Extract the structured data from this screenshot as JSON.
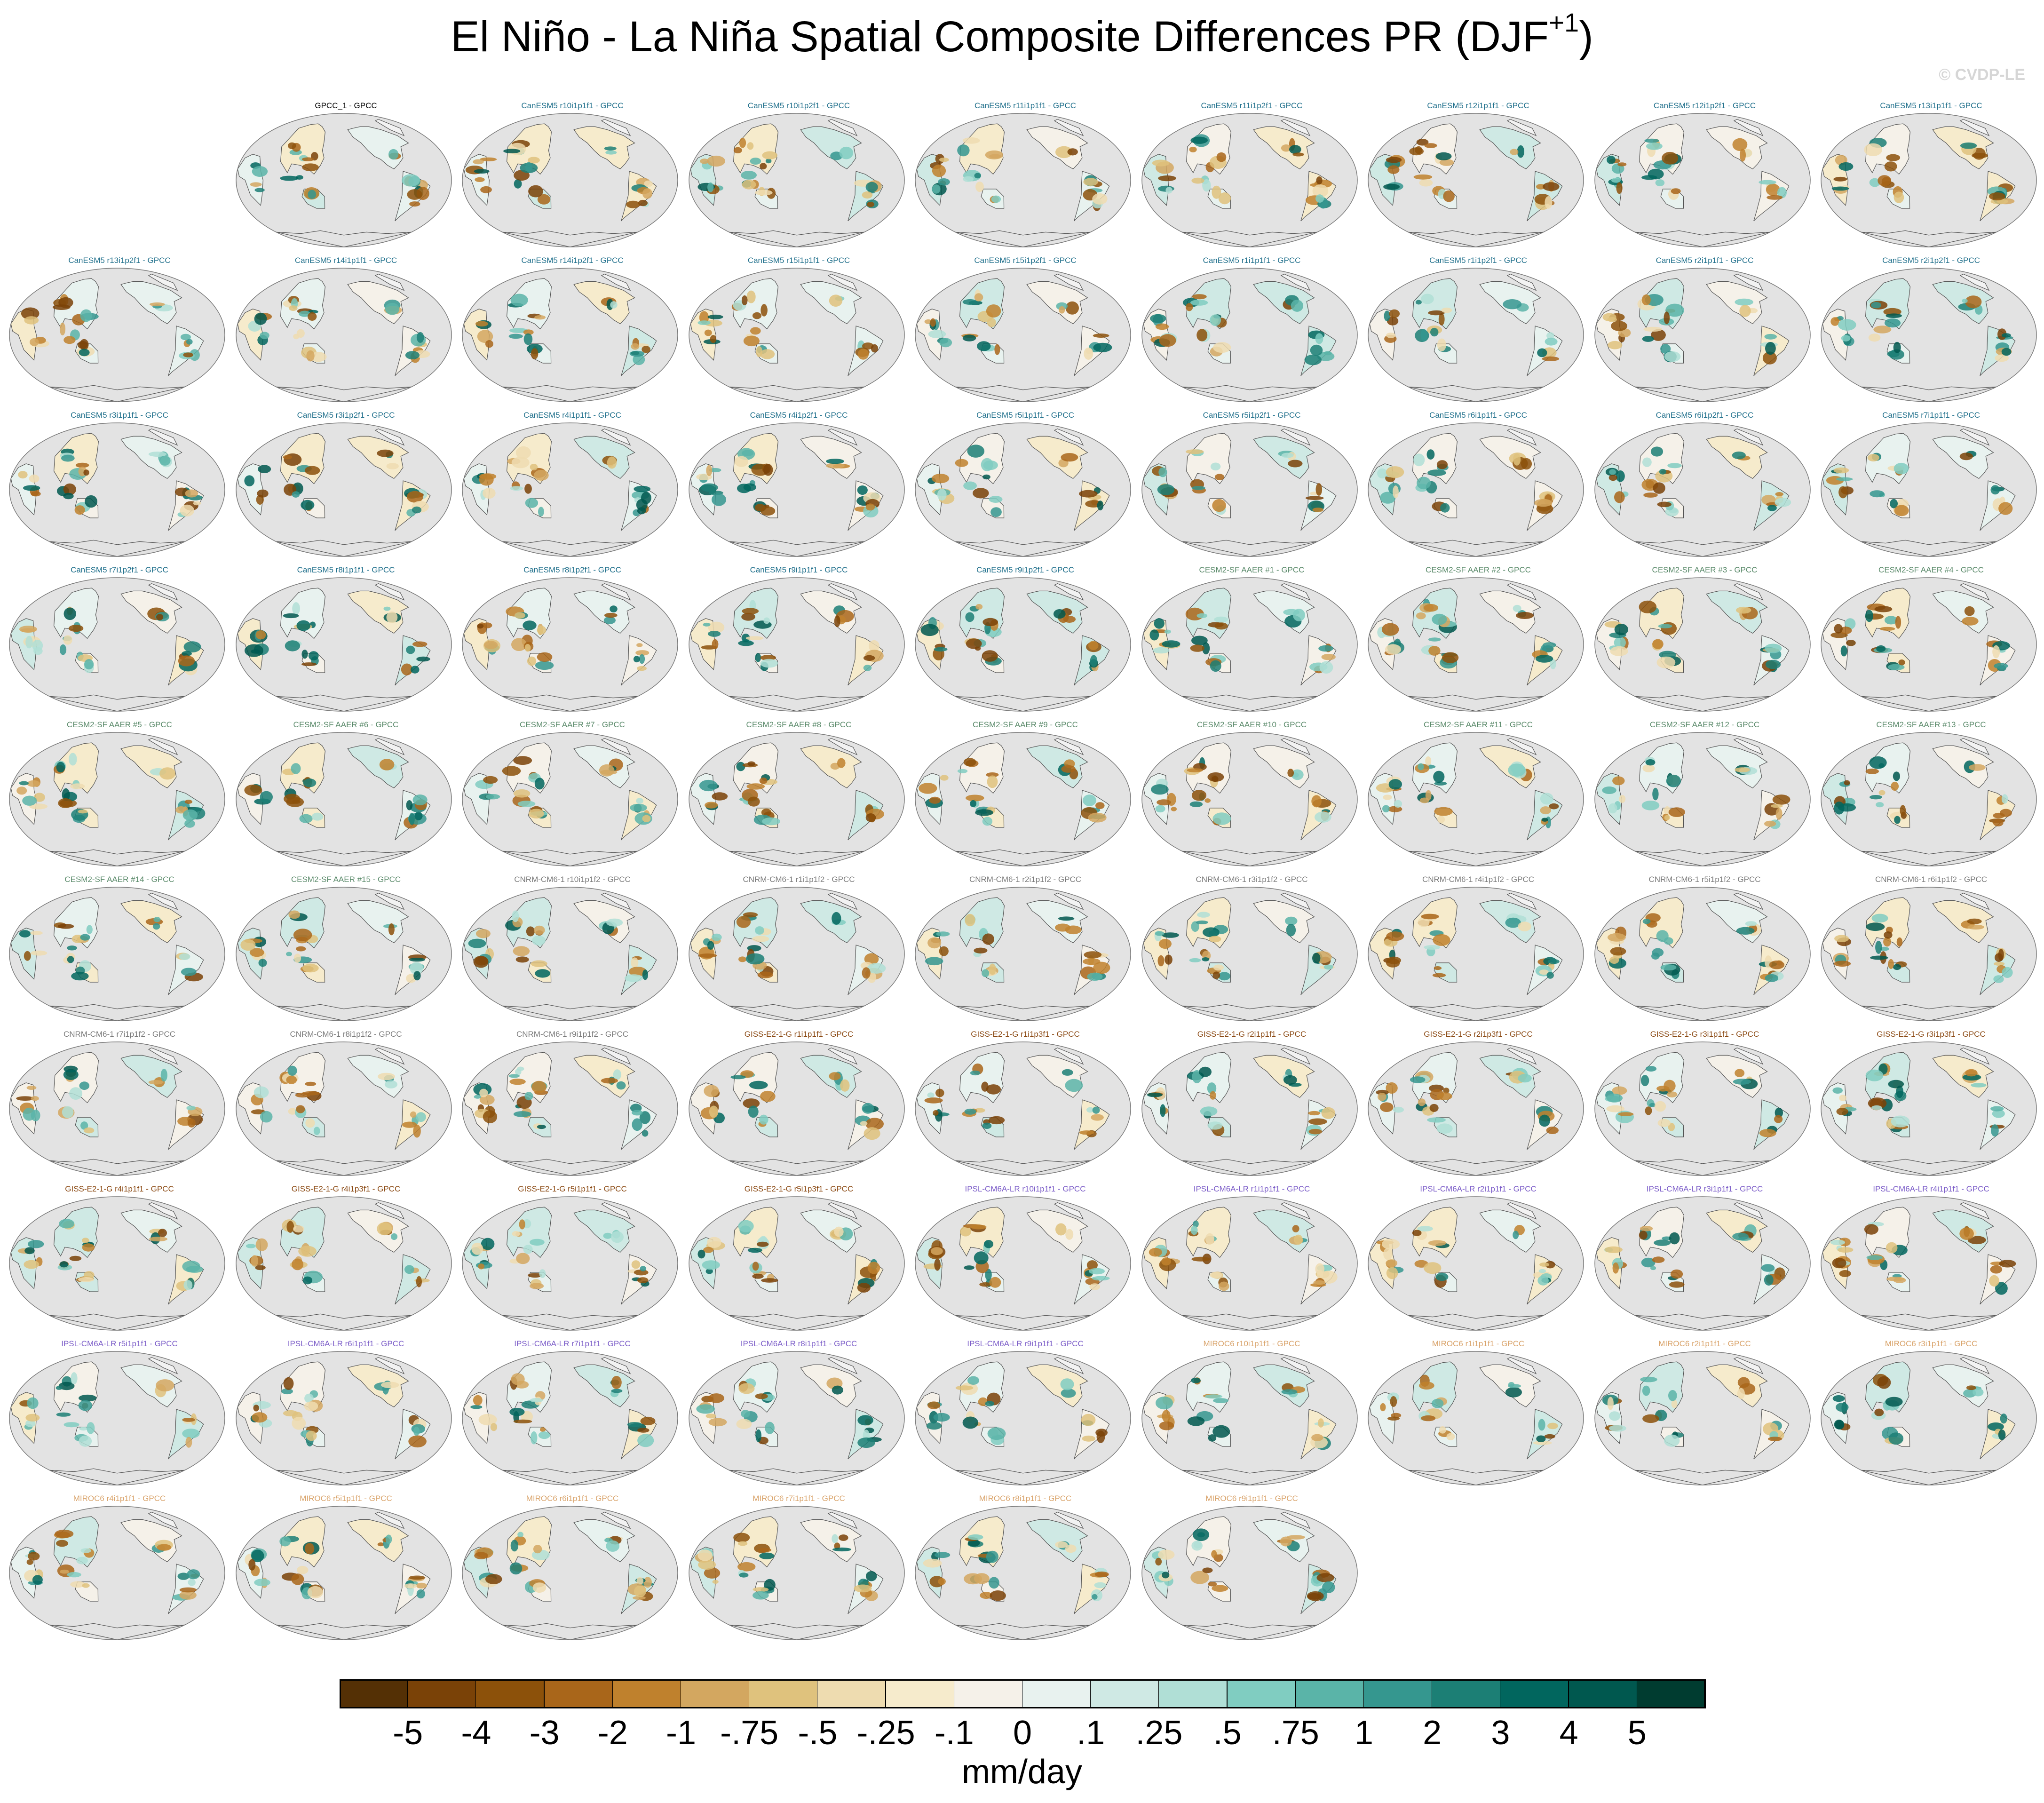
{
  "title": {
    "main": "El Niño - La Niña Spatial Composite Differences PR (DJF",
    "sup": "+1",
    "close": ")"
  },
  "watermark": "© CVDP-LE",
  "chart_data": {
    "type": "heatmap",
    "title": "El Niño - La Niña Spatial Composite Differences PR (DJF+1)",
    "colorbar": {
      "units": "mm/day",
      "tick_labels": [
        "-5",
        "-4",
        "-3",
        "-2",
        "-1",
        "-.75",
        "-.5",
        "-.25",
        "-.1",
        "0",
        ".1",
        ".25",
        ".5",
        ".75",
        "1",
        "2",
        "3",
        "4",
        "5"
      ],
      "colors": [
        "#543005",
        "#7a4207",
        "#8c510a",
        "#a9661a",
        "#bf812d",
        "#d3a760",
        "#dfc27d",
        "#eedcb0",
        "#f6ebcc",
        "#f5f1e9",
        "#e8f2ef",
        "#cfe9e4",
        "#b0dfd6",
        "#80cdc1",
        "#5ab4a8",
        "#35978f",
        "#1c7f75",
        "#01665e",
        "#00584f",
        "#003c30"
      ]
    },
    "panels": [
      {
        "label": "GPCC_1 - GPCC",
        "group": "obs"
      },
      {
        "label": "CanESM5 r10i1p1f1 - GPCC",
        "group": "canesm5"
      },
      {
        "label": "CanESM5 r10i1p2f1 - GPCC",
        "group": "canesm5"
      },
      {
        "label": "CanESM5 r11i1p1f1 - GPCC",
        "group": "canesm5"
      },
      {
        "label": "CanESM5 r11i1p2f1 - GPCC",
        "group": "canesm5"
      },
      {
        "label": "CanESM5 r12i1p1f1 - GPCC",
        "group": "canesm5"
      },
      {
        "label": "CanESM5 r12i1p2f1 - GPCC",
        "group": "canesm5"
      },
      {
        "label": "CanESM5 r13i1p1f1 - GPCC",
        "group": "canesm5"
      },
      {
        "label": "CanESM5 r13i1p2f1 - GPCC",
        "group": "canesm5"
      },
      {
        "label": "CanESM5 r14i1p1f1 - GPCC",
        "group": "canesm5"
      },
      {
        "label": "CanESM5 r14i1p2f1 - GPCC",
        "group": "canesm5"
      },
      {
        "label": "CanESM5 r15i1p1f1 - GPCC",
        "group": "canesm5"
      },
      {
        "label": "CanESM5 r15i1p2f1 - GPCC",
        "group": "canesm5"
      },
      {
        "label": "CanESM5 r1i1p1f1 - GPCC",
        "group": "canesm5"
      },
      {
        "label": "CanESM5 r1i1p2f1 - GPCC",
        "group": "canesm5"
      },
      {
        "label": "CanESM5 r2i1p1f1 - GPCC",
        "group": "canesm5"
      },
      {
        "label": "CanESM5 r2i1p2f1 - GPCC",
        "group": "canesm5"
      },
      {
        "label": "CanESM5 r3i1p1f1 - GPCC",
        "group": "canesm5"
      },
      {
        "label": "CanESM5 r3i1p2f1 - GPCC",
        "group": "canesm5"
      },
      {
        "label": "CanESM5 r4i1p1f1 - GPCC",
        "group": "canesm5"
      },
      {
        "label": "CanESM5 r4i1p2f1 - GPCC",
        "group": "canesm5"
      },
      {
        "label": "CanESM5 r5i1p1f1 - GPCC",
        "group": "canesm5"
      },
      {
        "label": "CanESM5 r5i1p2f1 - GPCC",
        "group": "canesm5"
      },
      {
        "label": "CanESM5 r6i1p1f1 - GPCC",
        "group": "canesm5"
      },
      {
        "label": "CanESM5 r6i1p2f1 - GPCC",
        "group": "canesm5"
      },
      {
        "label": "CanESM5 r7i1p1f1 - GPCC",
        "group": "canesm5"
      },
      {
        "label": "CanESM5 r7i1p2f1 - GPCC",
        "group": "canesm5"
      },
      {
        "label": "CanESM5 r8i1p1f1 - GPCC",
        "group": "canesm5"
      },
      {
        "label": "CanESM5 r8i1p2f1 - GPCC",
        "group": "canesm5"
      },
      {
        "label": "CanESM5 r9i1p1f1 - GPCC",
        "group": "canesm5"
      },
      {
        "label": "CanESM5 r9i1p2f1 - GPCC",
        "group": "canesm5"
      },
      {
        "label": "CESM2-SF AAER #1 - GPCC",
        "group": "cesm2"
      },
      {
        "label": "CESM2-SF AAER #2 - GPCC",
        "group": "cesm2"
      },
      {
        "label": "CESM2-SF AAER #3 - GPCC",
        "group": "cesm2"
      },
      {
        "label": "CESM2-SF AAER #4 - GPCC",
        "group": "cesm2"
      },
      {
        "label": "CESM2-SF AAER #5 - GPCC",
        "group": "cesm2"
      },
      {
        "label": "CESM2-SF AAER #6 - GPCC",
        "group": "cesm2"
      },
      {
        "label": "CESM2-SF AAER #7 - GPCC",
        "group": "cesm2"
      },
      {
        "label": "CESM2-SF AAER #8 - GPCC",
        "group": "cesm2"
      },
      {
        "label": "CESM2-SF AAER #9 - GPCC",
        "group": "cesm2"
      },
      {
        "label": "CESM2-SF AAER #10 - GPCC",
        "group": "cesm2"
      },
      {
        "label": "CESM2-SF AAER #11 - GPCC",
        "group": "cesm2"
      },
      {
        "label": "CESM2-SF AAER #12 - GPCC",
        "group": "cesm2"
      },
      {
        "label": "CESM2-SF AAER #13 - GPCC",
        "group": "cesm2"
      },
      {
        "label": "CESM2-SF AAER #14 - GPCC",
        "group": "cesm2"
      },
      {
        "label": "CESM2-SF AAER #15 - GPCC",
        "group": "cesm2"
      },
      {
        "label": "CNRM-CM6-1 r10i1p1f2 - GPCC",
        "group": "cnrm"
      },
      {
        "label": "CNRM-CM6-1 r1i1p1f2 - GPCC",
        "group": "cnrm"
      },
      {
        "label": "CNRM-CM6-1 r2i1p1f2 - GPCC",
        "group": "cnrm"
      },
      {
        "label": "CNRM-CM6-1 r3i1p1f2 - GPCC",
        "group": "cnrm"
      },
      {
        "label": "CNRM-CM6-1 r4i1p1f2 - GPCC",
        "group": "cnrm"
      },
      {
        "label": "CNRM-CM6-1 r5i1p1f2 - GPCC",
        "group": "cnrm"
      },
      {
        "label": "CNRM-CM6-1 r6i1p1f2 - GPCC",
        "group": "cnrm"
      },
      {
        "label": "CNRM-CM6-1 r7i1p1f2 - GPCC",
        "group": "cnrm"
      },
      {
        "label": "CNRM-CM6-1 r8i1p1f2 - GPCC",
        "group": "cnrm"
      },
      {
        "label": "CNRM-CM6-1 r9i1p1f2 - GPCC",
        "group": "cnrm"
      },
      {
        "label": "GISS-E2-1-G r1i1p1f1 - GPCC",
        "group": "giss"
      },
      {
        "label": "GISS-E2-1-G r1i1p3f1 - GPCC",
        "group": "giss"
      },
      {
        "label": "GISS-E2-1-G r2i1p1f1 - GPCC",
        "group": "giss"
      },
      {
        "label": "GISS-E2-1-G r2i1p3f1 - GPCC",
        "group": "giss"
      },
      {
        "label": "GISS-E2-1-G r3i1p1f1 - GPCC",
        "group": "giss"
      },
      {
        "label": "GISS-E2-1-G r3i1p3f1 - GPCC",
        "group": "giss"
      },
      {
        "label": "GISS-E2-1-G r4i1p1f1 - GPCC",
        "group": "giss"
      },
      {
        "label": "GISS-E2-1-G r4i1p3f1 - GPCC",
        "group": "giss"
      },
      {
        "label": "GISS-E2-1-G r5i1p1f1 - GPCC",
        "group": "giss"
      },
      {
        "label": "GISS-E2-1-G r5i1p3f1 - GPCC",
        "group": "giss"
      },
      {
        "label": "IPSL-CM6A-LR r10i1p1f1 - GPCC",
        "group": "ipsl"
      },
      {
        "label": "IPSL-CM6A-LR r1i1p1f1 - GPCC",
        "group": "ipsl"
      },
      {
        "label": "IPSL-CM6A-LR r2i1p1f1 - GPCC",
        "group": "ipsl"
      },
      {
        "label": "IPSL-CM6A-LR r3i1p1f1 - GPCC",
        "group": "ipsl"
      },
      {
        "label": "IPSL-CM6A-LR r4i1p1f1 - GPCC",
        "group": "ipsl"
      },
      {
        "label": "IPSL-CM6A-LR r5i1p1f1 - GPCC",
        "group": "ipsl"
      },
      {
        "label": "IPSL-CM6A-LR r6i1p1f1 - GPCC",
        "group": "ipsl"
      },
      {
        "label": "IPSL-CM6A-LR r7i1p1f1 - GPCC",
        "group": "ipsl"
      },
      {
        "label": "IPSL-CM6A-LR r8i1p1f1 - GPCC",
        "group": "ipsl"
      },
      {
        "label": "IPSL-CM6A-LR r9i1p1f1 - GPCC",
        "group": "ipsl"
      },
      {
        "label": "MIROC6 r10i1p1f1 - GPCC",
        "group": "miroc6"
      },
      {
        "label": "MIROC6 r1i1p1f1 - GPCC",
        "group": "miroc6"
      },
      {
        "label": "MIROC6 r2i1p1f1 - GPCC",
        "group": "miroc6"
      },
      {
        "label": "MIROC6 r3i1p1f1 - GPCC",
        "group": "miroc6"
      },
      {
        "label": "MIROC6 r4i1p1f1 - GPCC",
        "group": "miroc6"
      },
      {
        "label": "MIROC6 r5i1p1f1 - GPCC",
        "group": "miroc6"
      },
      {
        "label": "MIROC6 r6i1p1f1 - GPCC",
        "group": "miroc6"
      },
      {
        "label": "MIROC6 r7i1p1f1 - GPCC",
        "group": "miroc6"
      },
      {
        "label": "MIROC6 r8i1p1f1 - GPCC",
        "group": "miroc6"
      },
      {
        "label": "MIROC6 r9i1p1f1 - GPCC",
        "group": "miroc6"
      }
    ],
    "label_colors": {
      "obs": "#000000",
      "canesm5": "#1f6f8b",
      "cesm2": "#5a8a6a",
      "cnrm": "#7a7a7a",
      "giss": "#8b4a14",
      "ipsl": "#7b5cc8",
      "miroc6": "#d9a36a"
    },
    "map_colors": {
      "ocean": "#e3e3e3",
      "coast": "#555555"
    }
  }
}
